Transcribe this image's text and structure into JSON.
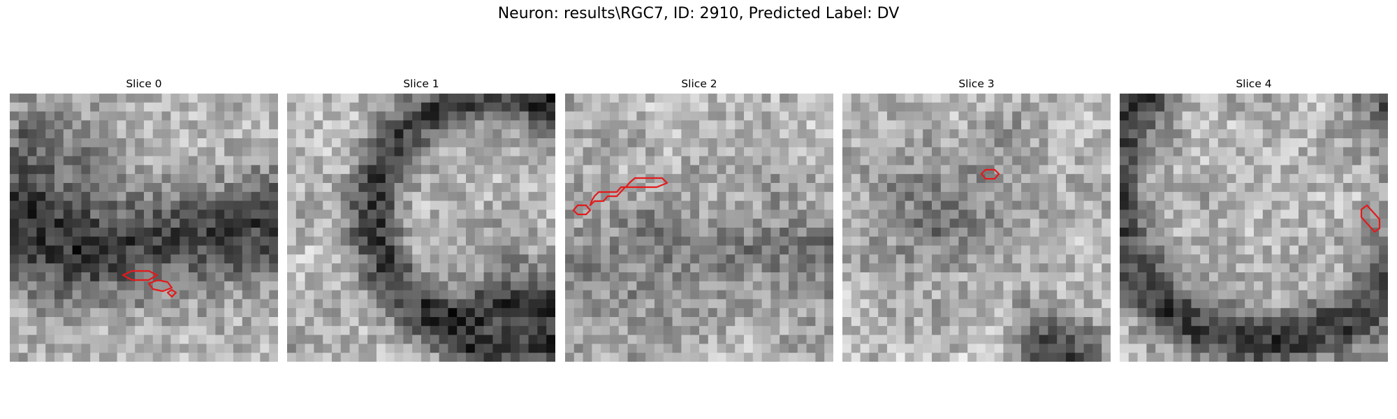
{
  "figure": {
    "suptitle": "Neuron: results\\RGC7, ID: 2910, Predicted Label: DV"
  },
  "panels": [
    {
      "title": "Slice 0",
      "seed": 11,
      "pattern": "dark-band-lower",
      "contour_color": "#e31a1c"
    },
    {
      "title": "Slice 1",
      "seed": 23,
      "pattern": "dark-arc-right",
      "contour_color": "#e31a1c"
    },
    {
      "title": "Slice 2",
      "seed": 37,
      "pattern": "diffuse",
      "contour_color": "#e31a1c"
    },
    {
      "title": "Slice 3",
      "seed": 41,
      "pattern": "diffuse-dark-center",
      "contour_color": "#e31a1c"
    },
    {
      "title": "Slice 4",
      "seed": 59,
      "pattern": "dark-bottom-arc",
      "contour_color": "#e31a1c"
    }
  ],
  "colormap": "gray",
  "grid_size": 30
}
